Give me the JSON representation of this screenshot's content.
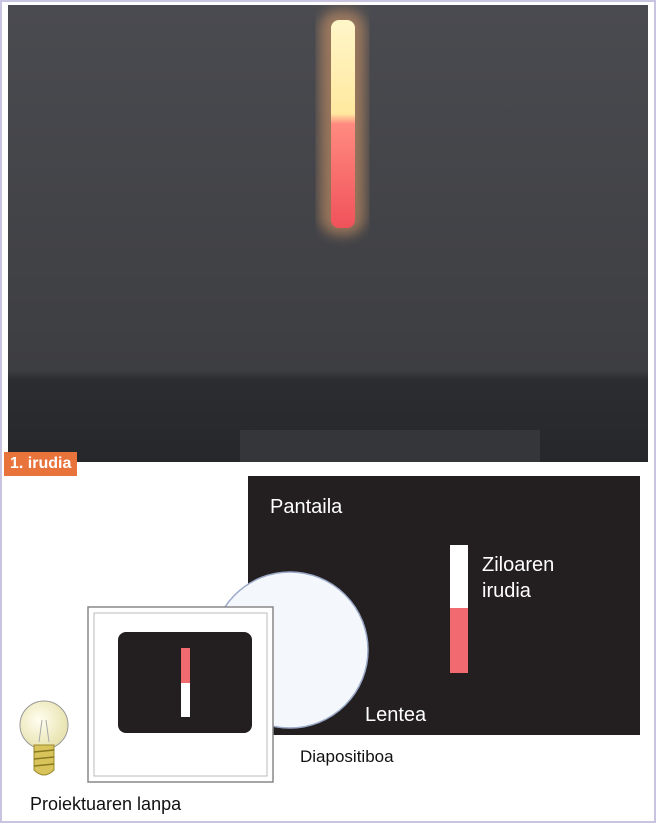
{
  "figure_label": "1. irudia",
  "labels": {
    "screen": "Pantaila",
    "image": "Ziloaren irudia",
    "lens": "Lentea",
    "slide": "Diapositiboa",
    "lamp": "Proiektuaren lanpa"
  }
}
